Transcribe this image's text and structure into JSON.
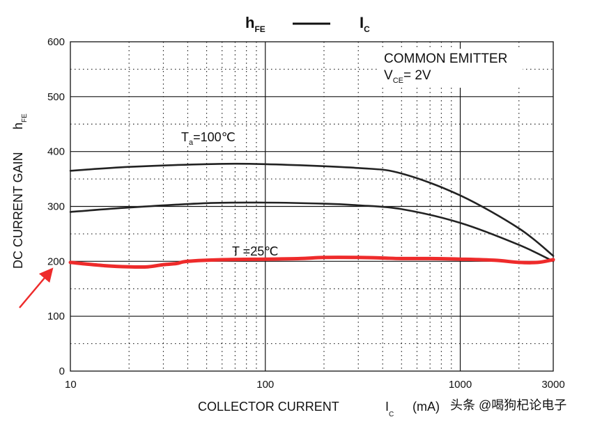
{
  "chart_data": {
    "type": "line",
    "title_main": "h",
    "title_main_sub": "FE",
    "title_dash": "—",
    "title_secondary": "I",
    "title_secondary_sub": "C",
    "xlabel_text": "COLLECTOR CURRENT",
    "xlabel_symbol": "I",
    "xlabel_symbol_sub": "C",
    "xlabel_unit": "(mA)",
    "ylabel_text": "DC CURRENT GAIN",
    "ylabel_symbol": "h",
    "ylabel_symbol_sub": "FE",
    "x_scale": "log",
    "xlim": [
      10,
      3000
    ],
    "ylim": [
      0,
      600
    ],
    "x_ticks": [
      10,
      100,
      1000,
      3000
    ],
    "x_tick_labels": [
      "10",
      "100",
      "1000",
      "3000"
    ],
    "y_ticks": [
      0,
      100,
      200,
      300,
      400,
      500,
      600
    ],
    "y_tick_labels": [
      "0",
      "100",
      "200",
      "300",
      "400",
      "500",
      "600"
    ],
    "grid": true,
    "legend_box": {
      "line1": "COMMON EMITTER",
      "line2_symbol": "V",
      "line2_sub": "CE",
      "line2_value": "= 2V"
    },
    "series": [
      {
        "name": "Ta=100℃",
        "label_prefix": "T",
        "label_sub": "a",
        "label_value": "=100℃",
        "color": "#222222",
        "x": [
          10,
          20,
          50,
          100,
          300,
          500,
          1000,
          2000,
          3000
        ],
        "values": [
          365,
          372,
          377,
          377,
          370,
          360,
          320,
          260,
          210
        ]
      },
      {
        "name": "",
        "color": "#222222",
        "x": [
          10,
          20,
          50,
          100,
          200,
          300,
          500,
          1000,
          2000,
          3000
        ],
        "values": [
          290,
          298,
          306,
          307,
          305,
          302,
          295,
          270,
          230,
          200
        ]
      },
      {
        "name": "T =25℃",
        "label_text": "T =25℃",
        "color": "#ee2b2b",
        "x": [
          10,
          15,
          20,
          25,
          30,
          35,
          40,
          60,
          100,
          150,
          200,
          300,
          400,
          500,
          700,
          1000,
          1500,
          2000,
          2500,
          3000
        ],
        "values": [
          198,
          192,
          190,
          190,
          194,
          196,
          200,
          203,
          204,
          205,
          207,
          207,
          206,
          205,
          205,
          204,
          202,
          198,
          198,
          203
        ]
      }
    ],
    "arrow_color": "#ee2b2b"
  },
  "watermark": "头条 @喝狗杞论电子"
}
